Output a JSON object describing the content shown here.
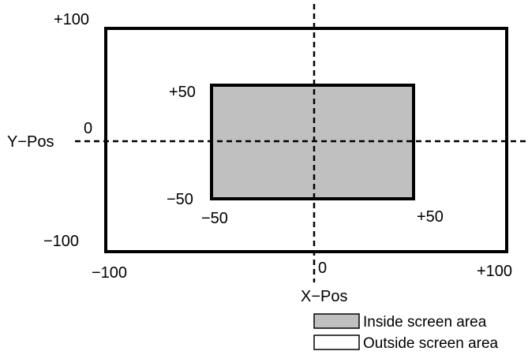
{
  "labels": {
    "y_axis": "Y−Pos",
    "x_axis": "X−Pos",
    "y_zero": "0",
    "x_zero": "0",
    "outer_top": "+100",
    "outer_bottom": "−100",
    "outer_left": "−100",
    "outer_right": "+100",
    "inner_top": "+50",
    "inner_bottom": "−50",
    "inner_left": "−50",
    "inner_right": "+50"
  },
  "legend": {
    "inside": "Inside screen area",
    "outside": "Outside screen area"
  },
  "colors": {
    "inside_fill": "#c0c0c0",
    "outside_fill": "#ffffff",
    "stroke": "#000000"
  }
}
